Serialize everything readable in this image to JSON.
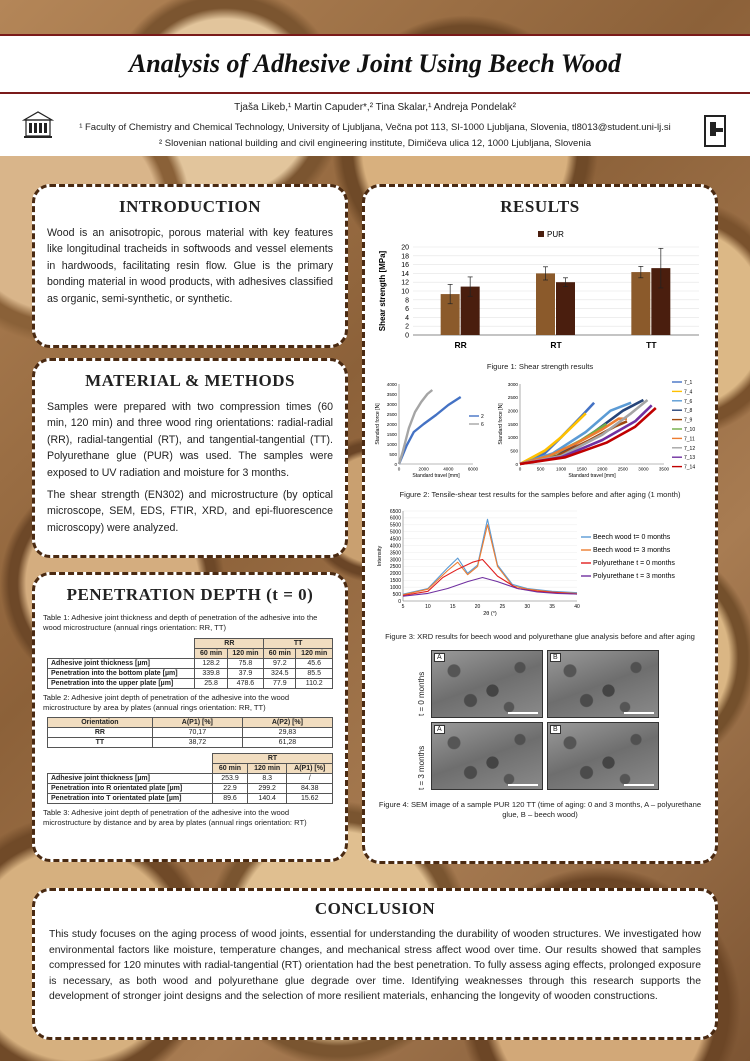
{
  "header": {
    "title": "Analysis of Adhesive Joint Using Beech Wood",
    "authors": "Tjaša Likeb,¹ Martin Capuder*,² Tina Skalar,¹ Andreja Pondelak²",
    "affiliation1": "¹ Faculty of Chemistry and Chemical Technology, University of Ljubljana, Večna pot 113, SI-1000 Ljubljana, Slovenia, tl8013@student.uni-lj.si",
    "affiliation2": "² Slovenian national building and civil engineering institute, Dimičeva ulica 12, 1000 Ljubljana, Slovenia"
  },
  "introduction": {
    "heading": "INTRODUCTION",
    "text": "Wood is an anisotropic, porous material with key features like longitudinal tracheids in softwoods and vessel elements in hardwoods, facilitating resin flow. Glue is the primary bonding material in wood products, with adhesives classified as organic, semi-synthetic, or synthetic."
  },
  "methods": {
    "heading": "MATERIAL & METHODS",
    "p1": "Samples were prepared with two compression times (60 min, 120 min) and three wood ring orientations: radial-radial (RR), radial-tangential (RT), and tangential-tangential (TT). Polyurethane glue (PUR) was used. The samples were exposed to UV radiation and moisture for 3 months.",
    "p2": "The shear strength (EN302) and microstructure (by optical microscope, SEM, EDS, FTIR, XRD, and epi-fluorescence microscopy) were analyzed."
  },
  "penetration": {
    "heading": "PENETRATION DEPTH (t = 0)",
    "table1_caption": "Table 1: Adhesive joint thickness and depth of penetration of the adhesive into the wood microstructure (annual rings orientation: RR, TT)",
    "table1": {
      "groups": [
        "RR",
        "TT"
      ],
      "times": [
        "60 min",
        "120 min",
        "60 min",
        "120 min"
      ],
      "rows": [
        {
          "label": "Adhesive joint thickness [µm]",
          "values": [
            "128.2",
            "75.8",
            "97.2",
            "45.6"
          ]
        },
        {
          "label": "Penetration into the bottom plate [µm]",
          "values": [
            "339.8",
            "37.9",
            "324.5",
            "85.5"
          ]
        },
        {
          "label": "Penetration into the upper plate [µm]",
          "values": [
            "25.8",
            "478.6",
            "77.9",
            "110.2"
          ]
        }
      ]
    },
    "table2_caption": "Table 2: Adhesive joint depth of penetration of the adhesive into the wood microstructure by area by plates (annual rings orientation: RR, TT)",
    "table2": {
      "headers": [
        "Orientation",
        "A(P1) [%]",
        "A(P2) [%]"
      ],
      "rows": [
        {
          "label": "RR",
          "values": [
            "70,17",
            "29,83"
          ]
        },
        {
          "label": "TT",
          "values": [
            "38,72",
            "61,28"
          ]
        }
      ]
    },
    "table3": {
      "group": "RT",
      "headers": [
        "60 min",
        "120 min",
        "A(P1) [%]"
      ],
      "rows": [
        {
          "label": "Adhesive joint thickness [µm]",
          "values": [
            "253.9",
            "8.3",
            "/"
          ]
        },
        {
          "label": "Penetration into R orientated plate [µm]",
          "values": [
            "22.9",
            "299.2",
            "84.38"
          ]
        },
        {
          "label": "Penetration into T orientated plate [µm]",
          "values": [
            "89.6",
            "140.4",
            "15.62"
          ]
        }
      ]
    },
    "table3_caption": "Table 3: Adhesive joint depth of penetration of the adhesive into the wood microstructure by distance and by area by plates (annual rings orientation: RT)"
  },
  "results": {
    "heading": "RESULTS",
    "fig1_caption": "Figure 1: Shear strength results",
    "fig2_caption": "Figure 2: Tensile-shear test results for the samples before and after aging (1 month)",
    "fig3_caption": "Figure 3: XRD results for beech wood and polyurethane glue analysis before and after aging",
    "fig4_caption": "Figure 4: SEM image of a sample PUR 120 TT (time of aging: 0 and 3 months, A – polyurethane glue, B – beech wood)",
    "sem": {
      "row_labels": [
        "t = 0 months",
        "t = 3 months"
      ],
      "tags": [
        "A",
        "B",
        "A",
        "B"
      ]
    }
  },
  "conclusion": {
    "heading": "CONCLUSION",
    "text": "This study focuses on the aging process of wood joints, essential for understanding the durability of wooden structures. We investigated how environmental factors like moisture, temperature changes, and mechanical stress affect wood over time. Our results showed that samples compressed for 120 minutes with radial-tangential (RT) orientation had the best penetration. To fully assess aging effects, prolonged exposure is necessary, as both wood and polyurethane glue degrade over time. Identifying weaknesses through this research supports the development of stronger joint designs and the selection of more resilient materials, enhancing the longevity of wooden constructions."
  },
  "colors": {
    "bar_light": "#8b5a2b",
    "bar_dark": "#4a1e0e",
    "border": "#4a2a12"
  },
  "chart_data": [
    {
      "type": "bar",
      "categories": [
        "RR",
        "RT",
        "TT"
      ],
      "series": [
        {
          "name": "",
          "values": [
            9.3,
            14.0,
            14.3
          ],
          "errors": [
            2.2,
            1.5,
            1.3
          ]
        },
        {
          "name": "PUR",
          "values": [
            11.0,
            12.0,
            15.2
          ],
          "errors": [
            2.2,
            1.0,
            4.5
          ]
        }
      ],
      "legend": "top-center",
      "ylabel": "Shear strength [MPa]",
      "ylim": [
        0,
        20
      ],
      "yticks": [
        "0",
        "2",
        "4",
        "6",
        "8",
        "10",
        "12",
        "14",
        "16",
        "18",
        "20"
      ]
    },
    {
      "type": "line",
      "xlabel": "Standard travel [mm]",
      "ylabel": "Standard force [N]",
      "xlim": [
        0,
        6000
      ],
      "ylim": [
        0,
        4000
      ],
      "xticks": [
        "0",
        "2000",
        "4000",
        "6000"
      ],
      "yticks": [
        "0",
        "500",
        "1000",
        "1500",
        "2000",
        "2500",
        "3000",
        "3500",
        "4000"
      ],
      "series": [
        {
          "name": "2",
          "color": "#4472c4",
          "x": [
            0,
            600,
            1200,
            2000,
            3000,
            4000,
            5000
          ],
          "y": [
            0,
            900,
            1600,
            2000,
            2450,
            2950,
            3350
          ]
        },
        {
          "name": "6",
          "color": "#a5a5a5",
          "x": [
            0,
            300,
            800,
            1300,
            1800,
            2300,
            2700
          ],
          "y": [
            0,
            600,
            1800,
            2600,
            3100,
            3500,
            3700
          ]
        }
      ]
    },
    {
      "type": "line",
      "xlabel": "Standard travel [mm]",
      "ylabel": "Standard force [N]",
      "xlim": [
        0,
        3500
      ],
      "ylim": [
        0,
        3000
      ],
      "xticks": [
        "0",
        "500",
        "1000",
        "1500",
        "2000",
        "2500",
        "3000",
        "3500"
      ],
      "yticks": [
        "0",
        "500",
        "1000",
        "1500",
        "2000",
        "2500",
        "3000"
      ],
      "series": [
        {
          "name": "7_1",
          "color": "#4472c4",
          "x": [
            0,
            600,
            1000,
            1500,
            1800
          ],
          "y": [
            0,
            400,
            1000,
            1800,
            2300
          ]
        },
        {
          "name": "7_4",
          "color": "#ffc000",
          "x": [
            0,
            600,
            1000,
            1400,
            1600
          ],
          "y": [
            0,
            500,
            1000,
            1600,
            1900
          ]
        },
        {
          "name": "7_6",
          "color": "#5b9bd5",
          "x": [
            0,
            800,
            1600,
            2200,
            2700
          ],
          "y": [
            0,
            400,
            1200,
            2000,
            2300
          ]
        },
        {
          "name": "7_8",
          "color": "#264478",
          "x": [
            0,
            900,
            1800,
            2500,
            3000
          ],
          "y": [
            0,
            300,
            1200,
            2000,
            2400
          ]
        },
        {
          "name": "7_9",
          "color": "#9e480e",
          "x": [
            0,
            900,
            1700,
            2300,
            2600
          ],
          "y": [
            0,
            300,
            900,
            1400,
            1600
          ]
        },
        {
          "name": "7_10",
          "color": "#70ad47",
          "x": [
            0,
            800,
            1500,
            1900,
            2100
          ],
          "y": [
            0,
            350,
            900,
            1300,
            1500
          ]
        },
        {
          "name": "7_11",
          "color": "#ed7d31",
          "x": [
            0,
            700,
            1400,
            2000,
            2400,
            2600
          ],
          "y": [
            0,
            300,
            800,
            1300,
            1700,
            1700
          ]
        },
        {
          "name": "7_12",
          "color": "#a5a5a5",
          "x": [
            0,
            1000,
            2000,
            2700,
            3100
          ],
          "y": [
            0,
            300,
            1100,
            1900,
            2400
          ]
        },
        {
          "name": "7_13",
          "color": "#7030a0",
          "x": [
            0,
            1000,
            2000,
            2800,
            3200
          ],
          "y": [
            0,
            250,
            900,
            1600,
            2200
          ]
        },
        {
          "name": "7_14",
          "color": "#c00000",
          "x": [
            0,
            1100,
            2100,
            2800,
            3300
          ],
          "y": [
            0,
            250,
            800,
            1400,
            2100
          ]
        }
      ]
    },
    {
      "type": "line",
      "xlabel": "2θ (°)",
      "ylabel": "Intensity",
      "xlim": [
        5,
        40
      ],
      "ylim": [
        0,
        6500
      ],
      "xticks": [
        "5",
        "10",
        "15",
        "20",
        "25",
        "30",
        "35",
        "40"
      ],
      "yticks": [
        "0",
        "500",
        "1000",
        "1500",
        "2000",
        "2500",
        "3000",
        "3500",
        "4000",
        "4500",
        "5000",
        "5500",
        "6000",
        "6500"
      ],
      "series": [
        {
          "name": "Beech wood t= 0 months",
          "color": "#5b9bd5",
          "x": [
            5,
            10,
            14,
            16,
            18,
            20,
            22,
            24,
            27,
            30,
            35,
            40
          ],
          "y": [
            500,
            900,
            2400,
            3100,
            2000,
            2600,
            5900,
            2600,
            1200,
            900,
            700,
            600
          ]
        },
        {
          "name": "Beech wood t= 3 months",
          "color": "#ed7d31",
          "x": [
            5,
            10,
            14,
            16,
            18,
            20,
            22,
            24,
            27,
            30,
            35,
            40
          ],
          "y": [
            450,
            850,
            2200,
            2800,
            1900,
            2500,
            5500,
            2500,
            1100,
            850,
            650,
            550
          ]
        },
        {
          "name": "Polyurethane t = 0 months",
          "color": "#e02020",
          "x": [
            5,
            10,
            13,
            16,
            19,
            21,
            24,
            28,
            32,
            36,
            40
          ],
          "y": [
            400,
            700,
            1700,
            2300,
            2800,
            3000,
            1800,
            900,
            700,
            600,
            500
          ]
        },
        {
          "name": "Polyurethane t = 3 months",
          "color": "#7030a0",
          "x": [
            5,
            10,
            14,
            18,
            21,
            24,
            28,
            32,
            36,
            40
          ],
          "y": [
            350,
            550,
            900,
            1400,
            1700,
            1400,
            900,
            650,
            550,
            500
          ]
        }
      ]
    }
  ]
}
